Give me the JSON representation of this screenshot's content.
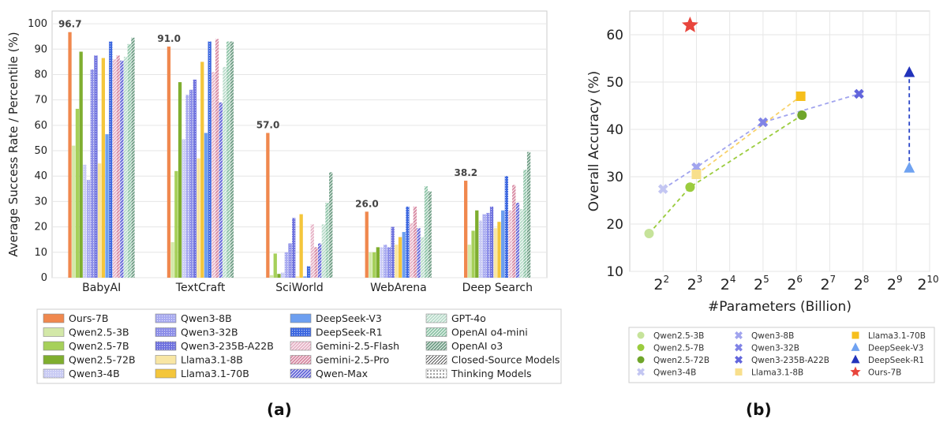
{
  "panel_labels": {
    "a": "(a)",
    "b": "(b)"
  },
  "colors": {
    "Ours-7B": "#f0884e",
    "Qwen2.5-3B": "#d3e8a8",
    "Qwen2.5-7B": "#a6d05a",
    "Qwen2.5-72B": "#7fae2f",
    "Qwen3-4B": "#c9cbf4",
    "Qwen3-8B": "#a8aaf0",
    "Qwen3-32B": "#8c8ee8",
    "Qwen3-235B-A22B": "#6f72de",
    "Llama3.1-8B": "#f8e6a4",
    "Llama3.1-70B": "#f4c63b",
    "DeepSeek-V3": "#6d9ff0",
    "DeepSeek-R1": "#3d68e0",
    "Gemini-2.5-Flash": "#e7b3c6",
    "Gemini-2.5-Pro": "#d88aa3",
    "Qwen-Max": "#6365d8",
    "GPT-4o": "#b9dccb",
    "OpenAI o4-mini": "#8ec4a7",
    "OpenAI o3": "#6f9e85",
    "Closed-Source Models": "#ffffff",
    "Thinking Models": "#ffffff",
    "scatter_Qwen2.5-3B": "#c6e39a",
    "scatter_Qwen2.5-7B": "#9bcc3e",
    "scatter_Qwen2.5-72B": "#6fa52a",
    "scatter_Qwen3-4B": "#c3c6f2",
    "scatter_Qwen3-8B": "#a1a4ee",
    "scatter_Qwen3-32B": "#8083e6",
    "scatter_Qwen3-235B-A22B": "#6265dc",
    "scatter_Llama3.1-8B": "#f8df8c",
    "scatter_Llama3.1-70B": "#f6bf1c",
    "scatter_DeepSeek-V3": "#6fa2f1",
    "scatter_DeepSeek-R1": "#2233bb",
    "scatter_Ours-7B": "#e8453c"
  },
  "chart_data": [
    {
      "type": "bar",
      "title": "",
      "xlabel": "",
      "ylabel": "Average Success Rate / Percentile (%)",
      "ylim": [
        0,
        105
      ],
      "yticks": [
        0,
        10,
        20,
        30,
        40,
        50,
        60,
        70,
        80,
        90,
        100
      ],
      "grid": true,
      "categories": [
        "BabyAI",
        "TextCraft",
        "SciWorld",
        "WebArena",
        "Deep Search"
      ],
      "annotations": [
        "96.7",
        "91.0",
        "57.0",
        "26.0",
        "38.2"
      ],
      "legend_entries": [
        "Ours-7B",
        "Qwen2.5-3B",
        "Qwen2.5-7B",
        "Qwen2.5-72B",
        "Qwen3-4B",
        "Qwen3-8B",
        "Qwen3-32B",
        "Qwen3-235B-A22B",
        "Llama3.1-8B",
        "Llama3.1-70B",
        "DeepSeek-V3",
        "DeepSeek-R1",
        "Gemini-2.5-Flash",
        "Gemini-2.5-Pro",
        "Qwen-Max",
        "GPT-4o",
        "OpenAI o4-mini",
        "OpenAI o3",
        "Closed-Source Models",
        "Thinking Models"
      ],
      "legend_position": "bottom",
      "series": [
        {
          "name": "Ours-7B",
          "pattern": "solid",
          "values": [
            96.7,
            91.0,
            57.0,
            26.0,
            38.2
          ]
        },
        {
          "name": "Qwen2.5-3B",
          "pattern": "solid",
          "values": [
            52,
            14,
            1,
            10,
            13
          ]
        },
        {
          "name": "Qwen2.5-7B",
          "pattern": "solid",
          "values": [
            66.5,
            42,
            9.5,
            10,
            18.5
          ]
        },
        {
          "name": "Qwen2.5-72B",
          "pattern": "solid",
          "values": [
            89,
            77,
            1.5,
            12,
            26.5
          ]
        },
        {
          "name": "Qwen3-4B",
          "pattern": "dots",
          "values": [
            44.5,
            54.5,
            2,
            12,
            22.5
          ]
        },
        {
          "name": "Qwen3-8B",
          "pattern": "dots",
          "values": [
            38.5,
            72,
            10,
            13,
            25
          ]
        },
        {
          "name": "Qwen3-32B",
          "pattern": "dots",
          "values": [
            82,
            74,
            13.5,
            12,
            25.5
          ]
        },
        {
          "name": "Qwen3-235B-A22B",
          "pattern": "dots",
          "values": [
            87.5,
            78,
            23.5,
            20,
            28
          ]
        },
        {
          "name": "Llama3.1-8B",
          "pattern": "solid",
          "values": [
            45,
            47,
            0.5,
            13,
            19.5
          ]
        },
        {
          "name": "Llama3.1-70B",
          "pattern": "solid",
          "values": [
            86.5,
            85,
            25,
            16,
            22
          ]
        },
        {
          "name": "DeepSeek-V3",
          "pattern": "solid",
          "values": [
            56.5,
            57,
            0.5,
            18,
            26.5
          ]
        },
        {
          "name": "DeepSeek-R1",
          "pattern": "dots",
          "values": [
            93,
            93,
            4.5,
            28,
            40
          ]
        },
        {
          "name": "Gemini-2.5-Flash",
          "pattern": "hatch",
          "values": [
            86,
            81,
            21,
            21.5,
            26.5
          ]
        },
        {
          "name": "Gemini-2.5-Pro",
          "pattern": "hatch",
          "values": [
            87.5,
            94,
            12,
            28,
            36.5
          ]
        },
        {
          "name": "Qwen-Max",
          "pattern": "hatch",
          "values": [
            85.5,
            69,
            13.5,
            19.5,
            29.5
          ]
        },
        {
          "name": "GPT-4o",
          "pattern": "hatch",
          "values": [
            87,
            83,
            21,
            16,
            27
          ]
        },
        {
          "name": "OpenAI o4-mini",
          "pattern": "hatch",
          "values": [
            92,
            93,
            29.5,
            36,
            42.5
          ]
        },
        {
          "name": "OpenAI o3",
          "pattern": "hatch",
          "values": [
            94.5,
            93,
            41.5,
            34,
            49.5
          ]
        }
      ]
    },
    {
      "type": "scatter",
      "title": "",
      "xlabel": "#Parameters (Billion)",
      "ylabel": "Overall Accuracy (%)",
      "xscale": "log2",
      "xlim": [
        1,
        10
      ],
      "ylim": [
        10,
        65
      ],
      "yticks": [
        10,
        20,
        30,
        40,
        50,
        60
      ],
      "xticks": [
        2,
        3,
        4,
        5,
        6,
        7,
        8,
        9,
        10
      ],
      "xtick_base": "2",
      "grid": true,
      "legend_position": "bottom",
      "points": [
        {
          "name": "Qwen2.5-3B",
          "x": 1.58,
          "y": 18,
          "marker": "circle",
          "family": "qwen25"
        },
        {
          "name": "Qwen2.5-7B",
          "x": 2.81,
          "y": 27.8,
          "marker": "circle",
          "family": "qwen25"
        },
        {
          "name": "Qwen2.5-72B",
          "x": 6.17,
          "y": 43,
          "marker": "circle",
          "family": "qwen25"
        },
        {
          "name": "Qwen3-4B",
          "x": 2.0,
          "y": 27.4,
          "marker": "x",
          "family": "qwen3"
        },
        {
          "name": "Qwen3-8B",
          "x": 3.0,
          "y": 32,
          "marker": "x",
          "family": "qwen3"
        },
        {
          "name": "Qwen3-32B",
          "x": 5.0,
          "y": 41.5,
          "marker": "x",
          "family": "qwen3"
        },
        {
          "name": "Qwen3-235B-A22B",
          "x": 7.88,
          "y": 47.5,
          "marker": "x",
          "family": "qwen3"
        },
        {
          "name": "Llama3.1-8B",
          "x": 3.0,
          "y": 30.5,
          "marker": "square",
          "family": "llama"
        },
        {
          "name": "Llama3.1-70B",
          "x": 6.13,
          "y": 47,
          "marker": "square",
          "family": "llama"
        },
        {
          "name": "DeepSeek-V3",
          "x": 9.39,
          "y": 31.8,
          "marker": "triangle",
          "family": "deepseek"
        },
        {
          "name": "DeepSeek-R1",
          "x": 9.39,
          "y": 52,
          "marker": "triangle",
          "family": "deepseek"
        },
        {
          "name": "Ours-7B",
          "x": 2.81,
          "y": 62,
          "marker": "star",
          "family": "ours"
        }
      ],
      "lines": [
        {
          "family": "qwen25",
          "color": "#9bcc3e",
          "points": [
            [
              1.58,
              18
            ],
            [
              2.81,
              27.8
            ],
            [
              6.17,
              43
            ]
          ]
        },
        {
          "family": "qwen3",
          "color": "#a1a4ee",
          "points": [
            [
              2.0,
              27.4
            ],
            [
              3.0,
              32
            ],
            [
              5.0,
              41.5
            ],
            [
              7.88,
              47.5
            ]
          ]
        },
        {
          "family": "llama",
          "color": "#f8d26a",
          "points": [
            [
              3.0,
              30.5
            ],
            [
              6.13,
              47
            ]
          ]
        },
        {
          "family": "deepseek",
          "color": "#2a46c8",
          "points": [
            [
              9.39,
              31.8
            ],
            [
              9.39,
              52
            ]
          ]
        }
      ],
      "legend_entries": [
        "Qwen2.5-3B",
        "Qwen2.5-7B",
        "Qwen2.5-72B",
        "Qwen3-4B",
        "Qwen3-8B",
        "Qwen3-32B",
        "Qwen3-235B-A22B",
        "Llama3.1-8B",
        "Llama3.1-70B",
        "DeepSeek-V3",
        "DeepSeek-R1",
        "Ours-7B"
      ]
    }
  ]
}
